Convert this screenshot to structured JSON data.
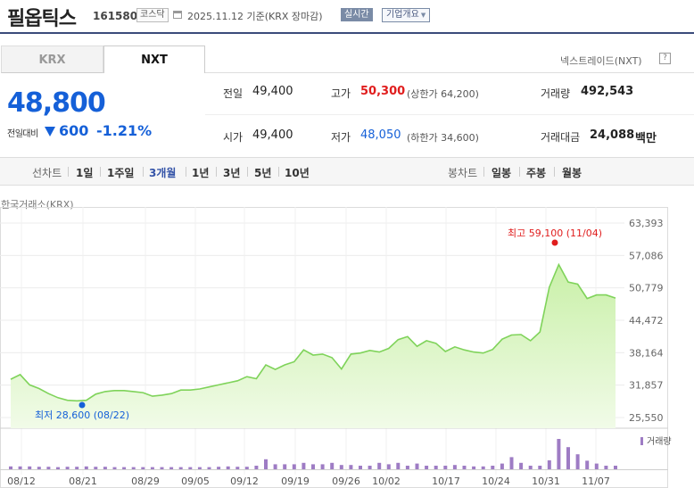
{
  "header": {
    "name": "필옵틱스",
    "code": "161580",
    "market": "코스닥",
    "date_text": "2025.11.12  기준(KRX 장마감)",
    "realtime_label": "실시간",
    "company_label": "기업개요"
  },
  "tabs": {
    "krx": "KRX",
    "nxt": "NXT"
  },
  "nxt_link": "넥스트레이드(NXT)",
  "help": "?",
  "price": {
    "current": "48,800",
    "change_label": "전일대비",
    "change": "600",
    "change_pct": "-1.21%",
    "direction": "down"
  },
  "stats": {
    "prev_label": "전일",
    "prev": "49,400",
    "high_label": "고가",
    "high": "50,300",
    "upper_limit": "(상한가 64,200)",
    "volume_label": "거래량",
    "volume": "492,543",
    "open_label": "시가",
    "open": "49,400",
    "low_label": "저가",
    "low": "48,050",
    "lower_limit": "(하한가 34,600)",
    "amount_label": "거래대금",
    "amount": "24,088",
    "amount_unit": "백만"
  },
  "period": {
    "line_label": "선차트",
    "line_options": [
      "1일",
      "1주일",
      "3개월",
      "1년",
      "3년",
      "5년",
      "10년"
    ],
    "selected": "3개월",
    "candle_label": "봉차트",
    "candle_options": [
      "일봉",
      "주봉",
      "월봉"
    ]
  },
  "source_label": "한국거래소(KRX)",
  "colors": {
    "up": "#e01d1d",
    "down": "#1560d8",
    "line": "#7fd35a",
    "fill": "#c9f0a8",
    "volume": "#9e7cc4",
    "header_rule": "#3b4b7a"
  },
  "chart_data": {
    "type": "area",
    "y_ticks": [
      "63,393",
      "57,086",
      "50,779",
      "44,472",
      "38,164",
      "31,857",
      "25,550"
    ],
    "ylim": [
      25550,
      63393
    ],
    "x_ticks": [
      "08/12",
      "08/21",
      "08/29",
      "09/05",
      "09/12",
      "09/19",
      "09/26",
      "10/02",
      "10/17",
      "10/24",
      "10/31",
      "11/07"
    ],
    "max_annotation": "최고 59,100 (11/04)",
    "min_annotation": "최저 28,600 (08/22)",
    "max_value": 59100,
    "min_value": 28600,
    "max_index": 66,
    "min_index": 8,
    "volume_legend": "거래량",
    "series": [
      {
        "name": "",
        "values": [
          33000,
          33900,
          31900,
          31200,
          30200,
          29400,
          28900,
          28800,
          28900,
          30100,
          30600,
          30800,
          30800,
          30600,
          30400,
          29700,
          29900,
          30200,
          30900,
          30900,
          31100,
          31500,
          31900,
          32300,
          32700,
          33500,
          33100,
          35800,
          34900,
          35800,
          36400,
          38700,
          37700,
          37900,
          37200,
          35000,
          37900,
          38100,
          38600,
          38300,
          39000,
          40700,
          41300,
          39400,
          40500,
          40000,
          38400,
          39300,
          38700,
          38300,
          38100,
          38800,
          40800,
          41600,
          41700,
          40500,
          42200,
          50900,
          55300,
          51900,
          51500,
          48700,
          49400,
          49400,
          48800
        ],
        "volume": [
          0.08,
          0.08,
          0.08,
          0.07,
          0.07,
          0.06,
          0.07,
          0.07,
          0.08,
          0.07,
          0.07,
          0.06,
          0.06,
          0.06,
          0.06,
          0.06,
          0.06,
          0.06,
          0.06,
          0.06,
          0.06,
          0.06,
          0.07,
          0.08,
          0.07,
          0.07,
          0.1,
          0.28,
          0.14,
          0.14,
          0.14,
          0.18,
          0.14,
          0.14,
          0.18,
          0.12,
          0.12,
          0.1,
          0.1,
          0.18,
          0.14,
          0.18,
          0.1,
          0.16,
          0.1,
          0.1,
          0.1,
          0.12,
          0.1,
          0.08,
          0.08,
          0.1,
          0.16,
          0.34,
          0.18,
          0.1,
          0.1,
          0.25,
          0.85,
          0.62,
          0.42,
          0.24,
          0.16,
          0.1,
          0.1
        ]
      }
    ]
  }
}
